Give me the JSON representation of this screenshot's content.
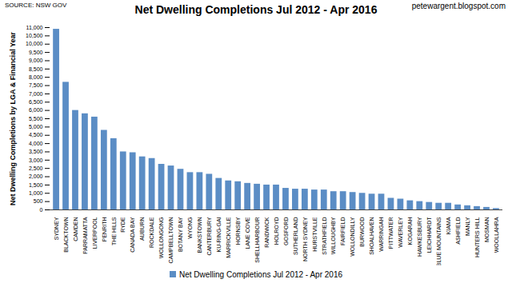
{
  "chart_data": {
    "type": "bar",
    "title": "Net Dwelling Completions Jul 2012 - Apr 2016",
    "source": "SOURCE: NSW GOV",
    "website": "petewargent.blogspot.com",
    "y_label": "Net Dwelling Completions by LGA & Financial Year",
    "categories": [
      "SYDNEY",
      "BLACKTOWN",
      "CAMDEN",
      "PARRAMATTA",
      "LIVERPOOL",
      "PENRITH",
      "THE HILLS",
      "RYDE",
      "CANADA BAY",
      "AUBURN",
      "ROCKDALE",
      "WOLLONGONG",
      "CAMPBELLTOWN",
      "BOTANY BAY",
      "WYONG",
      "BANKSTOWN",
      "CANTERBURY",
      "KU-RING-GAI",
      "MARRICKVILLE",
      "HORNSBY",
      "LANE COVE",
      "SHELLHARBOUR",
      "RANDWICK",
      "HOLROYD",
      "GOSFORD",
      "SUTHERLAND",
      "NORTH SYDNEY",
      "HURSTVILLE",
      "STRATHFIELD",
      "WILLOUGHBY",
      "FAIRFIELD",
      "WOLLONDILLY",
      "BURWOOD",
      "SHOALHAVEN",
      "WARRINGAH",
      "PITTWATER",
      "WAVERLEY",
      "KOGARAH",
      "HAWKESBURY",
      "LEICHHARDT",
      "BLUE MOUNTAINS",
      "KIAMA",
      "ASHFIELD",
      "MANLY",
      "HUNTERS HILL",
      "MOSMAN",
      "WOOLLAHRA"
    ],
    "series": [
      {
        "name": "Net Dwelling Completions Jul 2012 - Apr 2016",
        "color": "#5b8dc5",
        "values": [
          10900,
          7700,
          6000,
          5800,
          5600,
          4800,
          4300,
          3500,
          3450,
          3200,
          3100,
          2750,
          2650,
          2450,
          2250,
          2250,
          2150,
          1900,
          1750,
          1700,
          1600,
          1550,
          1500,
          1500,
          1300,
          1250,
          1250,
          1200,
          1200,
          1100,
          1100,
          1050,
          1000,
          950,
          950,
          700,
          650,
          550,
          500,
          450,
          400,
          400,
          300,
          250,
          200,
          150,
          80
        ]
      }
    ],
    "ylim": [
      0,
      11000
    ],
    "yticks": [
      0,
      500,
      {
        "value": 1000,
        "label": "1,000"
      },
      {
        "value": 1500,
        "label": "1,500"
      },
      {
        "value": 2000,
        "label": "2,000"
      },
      {
        "value": 2500,
        "label": "2,500"
      },
      {
        "value": 3000,
        "label": "3,000"
      },
      {
        "value": 3500,
        "label": "3,500"
      },
      {
        "value": 4000,
        "label": "4,000"
      },
      {
        "value": 4500,
        "label": "4,500"
      },
      {
        "value": 5000,
        "label": "5,000"
      },
      {
        "value": 5500,
        "label": "5,500"
      },
      {
        "value": 6000,
        "label": "6,000"
      },
      {
        "value": 6500,
        "label": "6,500"
      },
      {
        "value": 7000,
        "label": "7,000"
      },
      {
        "value": 7500,
        "label": "7,500"
      },
      {
        "value": 8000,
        "label": "8,000"
      },
      {
        "value": 8500,
        "label": "8,500"
      },
      {
        "value": 9000,
        "label": "9,000"
      },
      {
        "value": 9500,
        "label": "9,500"
      },
      {
        "value": 10000,
        "label": "10,000"
      },
      {
        "value": 10500,
        "label": "10,500"
      },
      {
        "value": 11000,
        "label": "11,000"
      }
    ],
    "grid": false,
    "legend": "bottom"
  }
}
